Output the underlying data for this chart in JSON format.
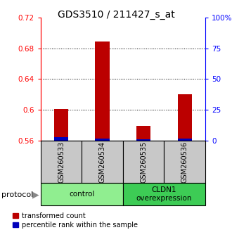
{
  "title": "GDS3510 / 211427_s_at",
  "samples": [
    "GSM260533",
    "GSM260534",
    "GSM260535",
    "GSM260536"
  ],
  "red_values": [
    0.601,
    0.689,
    0.579,
    0.62
  ],
  "blue_pct": [
    3,
    2,
    1,
    2
  ],
  "ylim_left": [
    0.56,
    0.72
  ],
  "ylim_right": [
    0,
    100
  ],
  "yticks_left": [
    0.56,
    0.6,
    0.64,
    0.68,
    0.72
  ],
  "yticks_right": [
    0,
    25,
    50,
    75,
    100
  ],
  "ytick_labels_right": [
    "0",
    "25",
    "50",
    "75",
    "100%"
  ],
  "groups": [
    {
      "label": "control",
      "samples": [
        0,
        1
      ],
      "color": "#90EE90"
    },
    {
      "label": "CLDN1\noverexpression",
      "samples": [
        2,
        3
      ],
      "color": "#3DCC55"
    }
  ],
  "bar_width": 0.35,
  "red_color": "#BB0000",
  "blue_color": "#0000BB",
  "sample_bg": "#C8C8C8",
  "legend_red": "transformed count",
  "legend_blue": "percentile rank within the sample",
  "protocol_label": "protocol",
  "title_fontsize": 10,
  "tick_fontsize": 7.5,
  "sample_fontsize": 7,
  "group_fontsize": 7.5,
  "legend_fontsize": 7
}
